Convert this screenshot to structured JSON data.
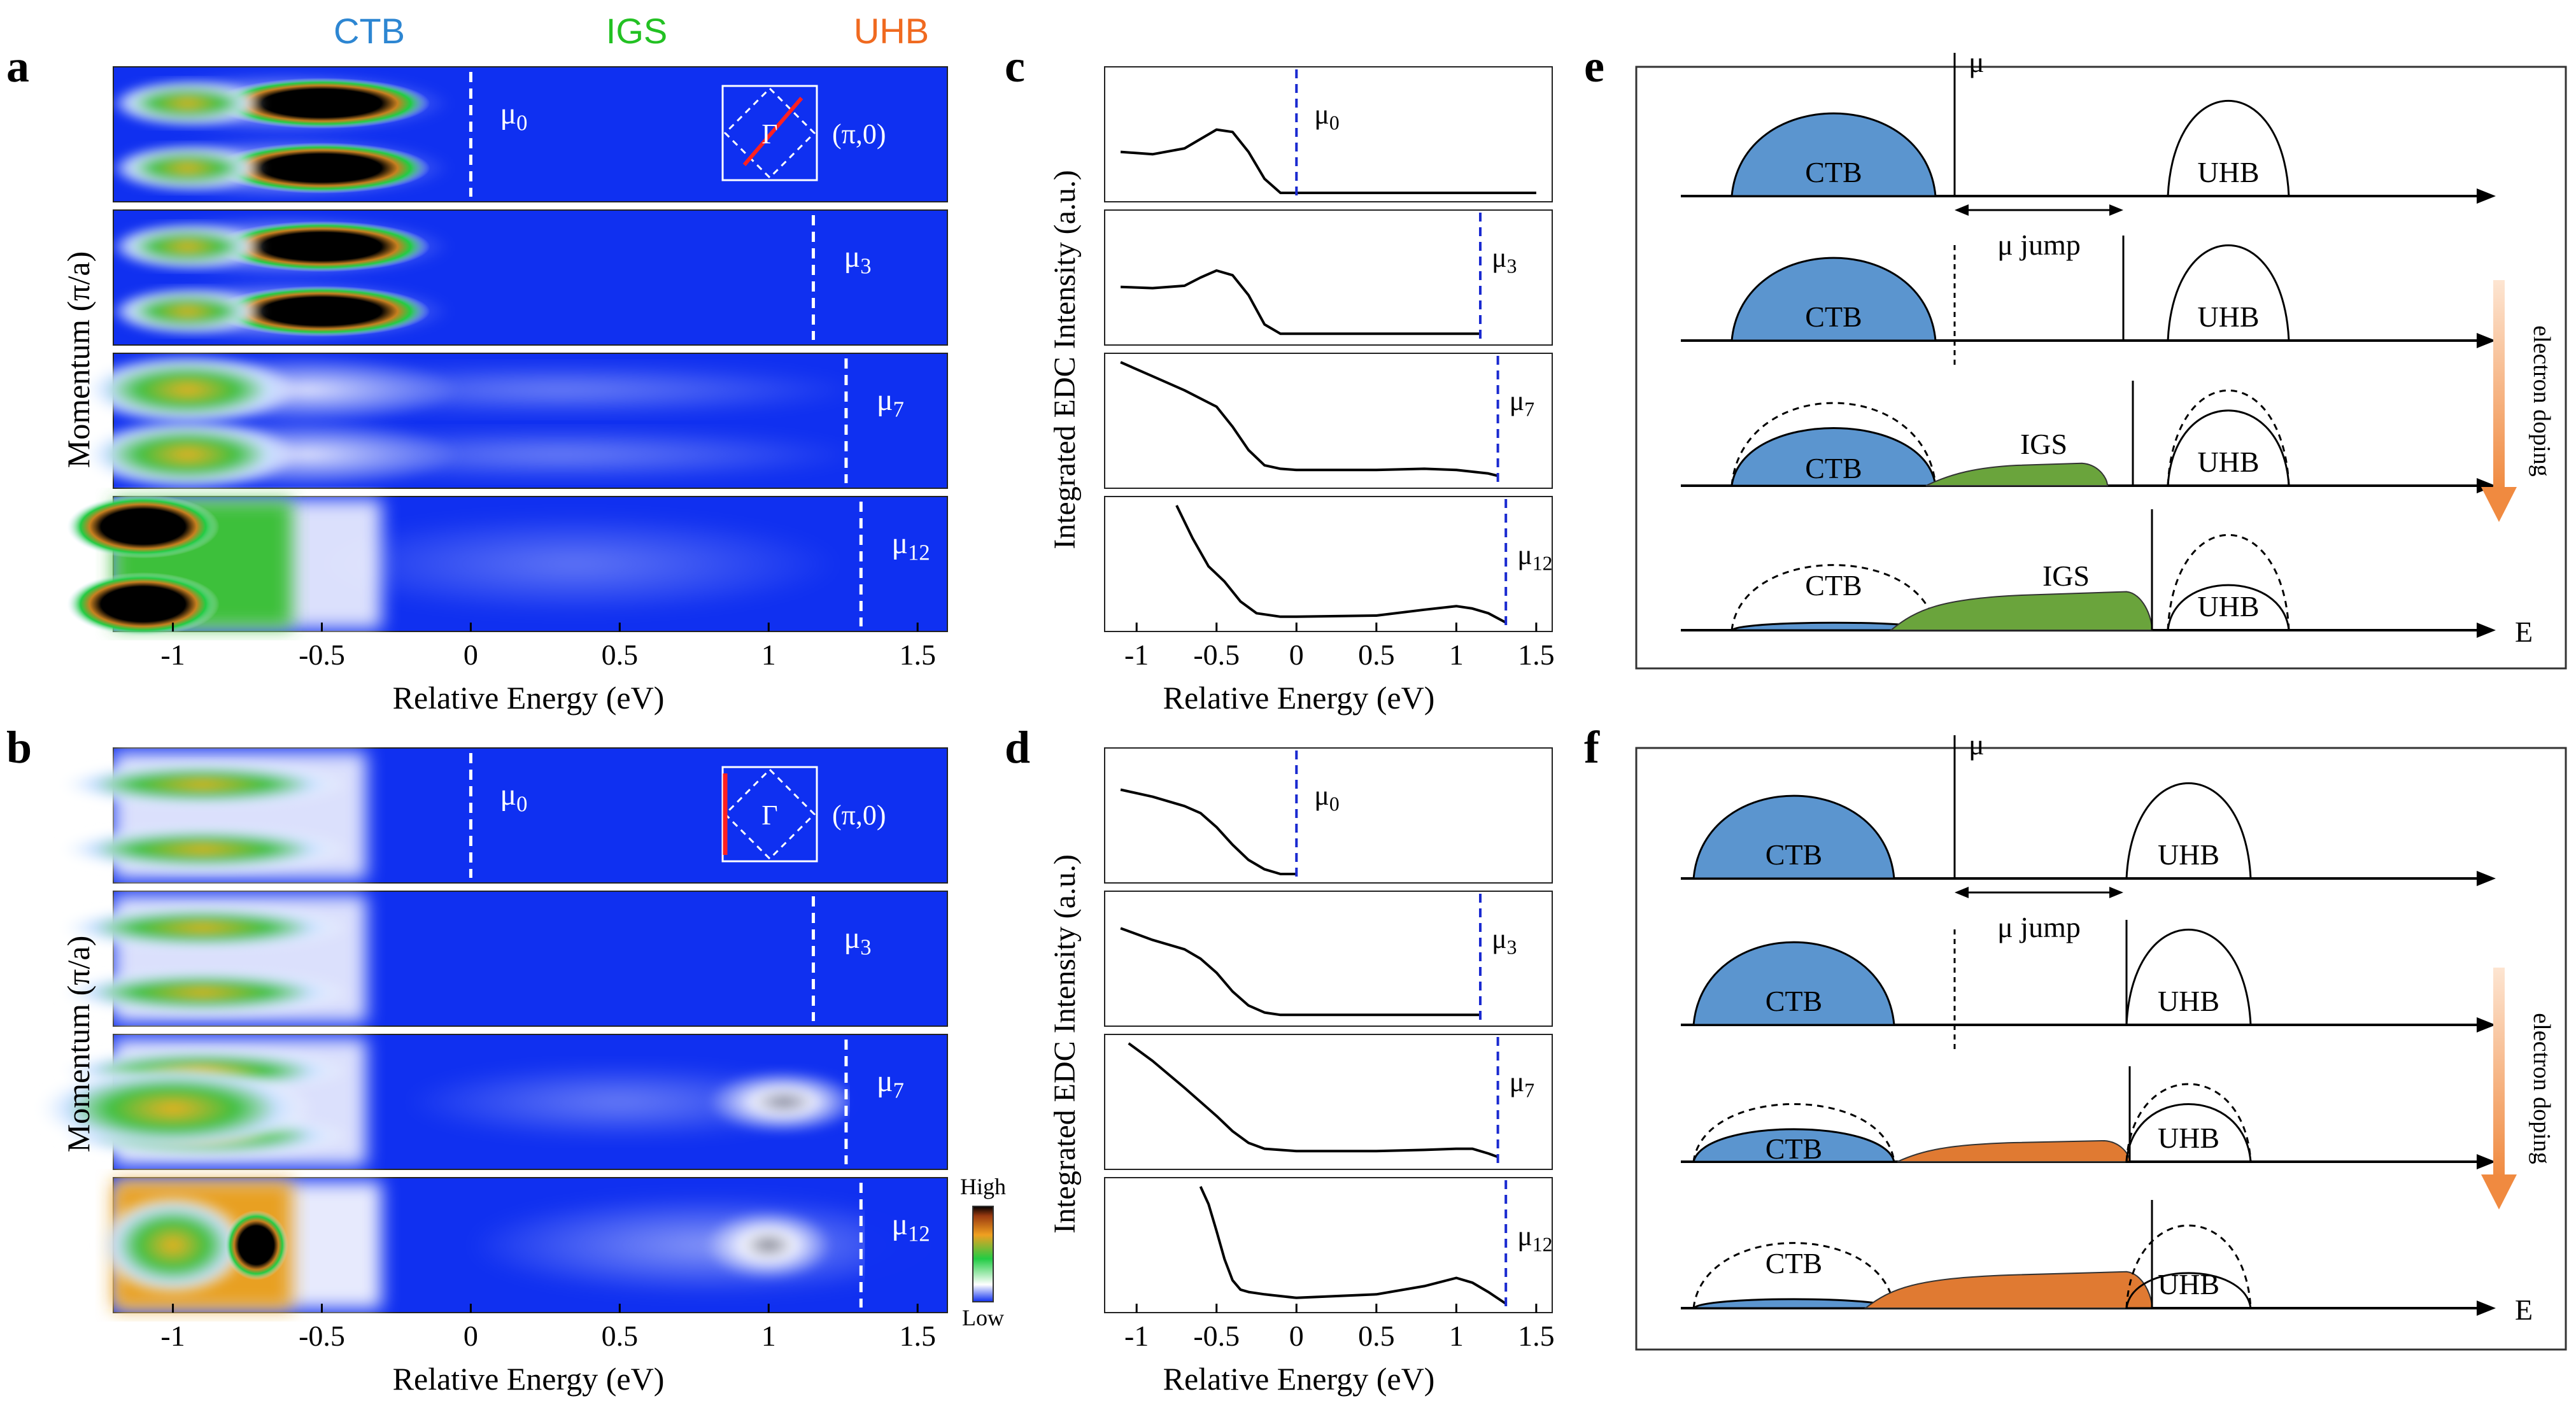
{
  "header_labels": {
    "ctb": "CTB",
    "igs": "IGS",
    "uhb": "UHB"
  },
  "panel_letters": {
    "a": "a",
    "b": "b",
    "c": "c",
    "d": "d",
    "e": "e",
    "f": "f"
  },
  "mu": {
    "m0": "0",
    "m3": "3",
    "m7": "7",
    "m12": "12",
    "symbol": "μ"
  },
  "insets": {
    "gamma": "Γ",
    "pi0": "(π,0)"
  },
  "axes": {
    "arpes_xlabel": "Relative Energy (eV)",
    "arpes_ylabel": "Momentum (π/a)",
    "edc_xlabel": "Relative Energy (eV)",
    "edc_ylabel": "Integrated EDC Intensity  (a.u.)",
    "x_ticks": [
      "-1",
      "-0.5",
      "0",
      "0.5",
      "1",
      "1.5"
    ],
    "x_tick_values": [
      -1,
      -0.5,
      0,
      0.5,
      1,
      1.5
    ],
    "xlim": [
      -1.2,
      1.6
    ]
  },
  "colorbar": {
    "high": "High",
    "low": "Low"
  },
  "schematic": {
    "ctb": "CTB",
    "uhb": "UHB",
    "igs": "IGS",
    "mu": "μ",
    "mu_jump": "μ jump",
    "e_axis": "E",
    "doping": "electron doping"
  },
  "colors": {
    "ctb": "#5b95cf",
    "igs": "#6aa43c",
    "orange": "#e07a32",
    "map_bg": "#1030f0",
    "arrow": "#f08a40",
    "header_ctb": "#2d86d2",
    "header_igs": "#23c123",
    "header_uhb": "#f06a20"
  },
  "chart_data": [
    {
      "type": "line",
      "panel": "c",
      "label": "μ0",
      "mu_position": 0.0,
      "x": [
        -1.1,
        -0.9,
        -0.7,
        -0.6,
        -0.5,
        -0.4,
        -0.3,
        -0.2,
        -0.1,
        0,
        0.5,
        1.0,
        1.5
      ],
      "y": [
        0.35,
        0.33,
        0.38,
        0.46,
        0.54,
        0.52,
        0.35,
        0.12,
        0.0,
        0.0,
        0.0,
        0.0,
        0.0
      ]
    },
    {
      "type": "line",
      "panel": "c",
      "label": "μ3",
      "mu_position": 1.15,
      "x": [
        -1.1,
        -0.9,
        -0.7,
        -0.6,
        -0.5,
        -0.4,
        -0.3,
        -0.2,
        -0.1,
        0,
        0.5,
        1.0,
        1.15
      ],
      "y": [
        0.42,
        0.41,
        0.43,
        0.5,
        0.56,
        0.52,
        0.35,
        0.1,
        0.02,
        0.02,
        0.02,
        0.02,
        0.02
      ]
    },
    {
      "type": "line",
      "panel": "c",
      "label": "μ7",
      "mu_position": 1.26,
      "x": [
        -1.1,
        -0.9,
        -0.7,
        -0.5,
        -0.4,
        -0.3,
        -0.2,
        -0.1,
        0,
        0.5,
        0.8,
        1.0,
        1.2,
        1.26
      ],
      "y": [
        1.0,
        0.88,
        0.76,
        0.62,
        0.45,
        0.25,
        0.12,
        0.09,
        0.08,
        0.08,
        0.09,
        0.08,
        0.05,
        0.03
      ]
    },
    {
      "type": "line",
      "panel": "c",
      "label": "μ12",
      "mu_position": 1.31,
      "x": [
        -0.75,
        -0.65,
        -0.55,
        -0.45,
        -0.35,
        -0.25,
        -0.1,
        0,
        0.5,
        0.8,
        1.0,
        1.1,
        1.2,
        1.31
      ],
      "y": [
        1.0,
        0.72,
        0.48,
        0.35,
        0.18,
        0.08,
        0.05,
        0.05,
        0.06,
        0.11,
        0.14,
        0.12,
        0.08,
        0.0
      ]
    },
    {
      "type": "line",
      "panel": "d",
      "label": "μ0",
      "mu_position": 0.0,
      "x": [
        -1.1,
        -0.9,
        -0.8,
        -0.7,
        -0.6,
        -0.5,
        -0.4,
        -0.3,
        -0.2,
        -0.1,
        0
      ],
      "y": [
        0.72,
        0.66,
        0.62,
        0.58,
        0.52,
        0.4,
        0.25,
        0.12,
        0.04,
        0.0,
        0.0
      ]
    },
    {
      "type": "line",
      "panel": "d",
      "label": "μ3",
      "mu_position": 1.15,
      "x": [
        -1.1,
        -0.9,
        -0.7,
        -0.6,
        -0.5,
        -0.4,
        -0.3,
        -0.2,
        -0.1,
        0,
        0.5,
        1.0,
        1.15
      ],
      "y": [
        0.76,
        0.66,
        0.58,
        0.5,
        0.38,
        0.22,
        0.1,
        0.04,
        0.02,
        0.02,
        0.02,
        0.02,
        0.02
      ]
    },
    {
      "type": "line",
      "panel": "d",
      "label": "μ7",
      "mu_position": 1.26,
      "x": [
        -1.05,
        -0.9,
        -0.7,
        -0.5,
        -0.4,
        -0.3,
        -0.2,
        0,
        0.5,
        0.8,
        1.0,
        1.1,
        1.2,
        1.26
      ],
      "y": [
        1.0,
        0.85,
        0.62,
        0.38,
        0.25,
        0.15,
        0.1,
        0.08,
        0.08,
        0.09,
        0.1,
        0.1,
        0.06,
        0.03
      ]
    },
    {
      "type": "line",
      "panel": "d",
      "label": "μ12",
      "mu_position": 1.31,
      "x": [
        -0.6,
        -0.55,
        -0.5,
        -0.45,
        -0.4,
        -0.35,
        -0.3,
        -0.2,
        0,
        0.5,
        0.8,
        1.0,
        1.1,
        1.2,
        1.31
      ],
      "y": [
        1.0,
        0.85,
        0.62,
        0.38,
        0.2,
        0.12,
        0.1,
        0.08,
        0.05,
        0.08,
        0.15,
        0.22,
        0.18,
        0.1,
        0.0
      ]
    }
  ]
}
